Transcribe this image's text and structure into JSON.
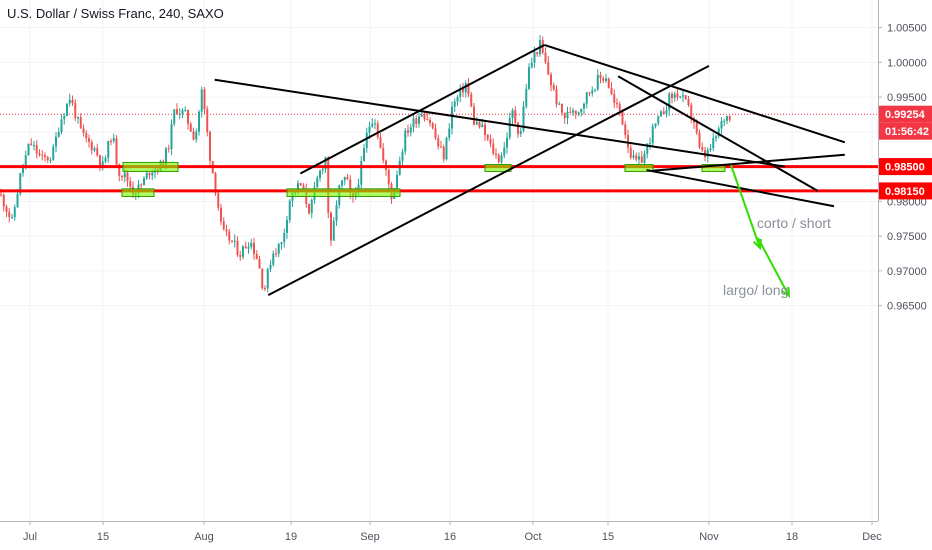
{
  "chart_data": {
    "type": "candlestick",
    "title": "U.S. Dollar / Swiss Franc, 240, SAXO",
    "xlabel": "",
    "ylabel": "",
    "ylim": [
      0.962,
      1.007
    ],
    "x_ticks": [
      "Jul",
      "15",
      "Aug",
      "19",
      "Sep",
      "16",
      "Oct",
      "15",
      "Nov",
      "18",
      "Dec"
    ],
    "y_ticks": [
      "1.00500",
      "1.00000",
      "0.99500",
      "0.99000",
      "0.98500",
      "0.98000",
      "0.97500",
      "0.97000",
      "0.96500"
    ],
    "current_price": {
      "value": 0.99254,
      "label": "0.99254",
      "countdown": "01:56:42",
      "color": "#f23645"
    },
    "horizontal_levels": [
      {
        "value": 0.985,
        "label": "0.98500",
        "color": "#ff0000"
      },
      {
        "value": 0.9815,
        "label": "0.98150",
        "color": "#ff0000"
      }
    ],
    "colors": {
      "up": "#26a69a",
      "down": "#ef5350",
      "zone": "#7cfc00",
      "arrow": "#33dd00",
      "trendline": "#000000"
    },
    "price_path": [
      [
        0,
        0.981
      ],
      [
        5,
        0.9795
      ],
      [
        12,
        0.977
      ],
      [
        20,
        0.9835
      ],
      [
        30,
        0.9885
      ],
      [
        42,
        0.986
      ],
      [
        52,
        0.9865
      ],
      [
        60,
        0.9915
      ],
      [
        70,
        0.995
      ],
      [
        82,
        0.9895
      ],
      [
        95,
        0.9875
      ],
      [
        103,
        0.985
      ],
      [
        112,
        0.99
      ],
      [
        118,
        0.9845
      ],
      [
        126,
        0.9835
      ],
      [
        133,
        0.9815
      ],
      [
        140,
        0.982
      ],
      [
        150,
        0.9845
      ],
      [
        160,
        0.985
      ],
      [
        168,
        0.9875
      ],
      [
        175,
        0.9935
      ],
      [
        185,
        0.9925
      ],
      [
        195,
        0.989
      ],
      [
        202,
        0.996
      ],
      [
        210,
        0.9865
      ],
      [
        216,
        0.9815
      ],
      [
        222,
        0.9755
      ],
      [
        230,
        0.9745
      ],
      [
        240,
        0.9725
      ],
      [
        250,
        0.9745
      ],
      [
        258,
        0.9715
      ],
      [
        264,
        0.967
      ],
      [
        272,
        0.9725
      ],
      [
        282,
        0.974
      ],
      [
        290,
        0.9805
      ],
      [
        300,
        0.9825
      ],
      [
        310,
        0.9785
      ],
      [
        318,
        0.9835
      ],
      [
        326,
        0.9865
      ],
      [
        330,
        0.9725
      ],
      [
        338,
        0.9815
      ],
      [
        346,
        0.9835
      ],
      [
        352,
        0.9795
      ],
      [
        360,
        0.984
      ],
      [
        368,
        0.9905
      ],
      [
        374,
        0.9925
      ],
      [
        382,
        0.9865
      ],
      [
        392,
        0.9805
      ],
      [
        398,
        0.985
      ],
      [
        406,
        0.99
      ],
      [
        414,
        0.9915
      ],
      [
        422,
        0.993
      ],
      [
        430,
        0.9915
      ],
      [
        438,
        0.988
      ],
      [
        444,
        0.9865
      ],
      [
        452,
        0.9935
      ],
      [
        460,
        0.9955
      ],
      [
        466,
        0.997
      ],
      [
        474,
        0.9915
      ],
      [
        482,
        0.9905
      ],
      [
        490,
        0.988
      ],
      [
        498,
        0.986
      ],
      [
        504,
        0.9875
      ],
      [
        512,
        0.993
      ],
      [
        520,
        0.9895
      ],
      [
        528,
        0.9985
      ],
      [
        534,
        1.001
      ],
      [
        540,
        1.0025
      ],
      [
        546,
        0.9995
      ],
      [
        552,
        0.9965
      ],
      [
        560,
        0.993
      ],
      [
        566,
        0.992
      ],
      [
        572,
        0.9935
      ],
      [
        578,
        0.993
      ],
      [
        588,
        0.9955
      ],
      [
        598,
        0.9975
      ],
      [
        606,
        0.998
      ],
      [
        614,
        0.994
      ],
      [
        620,
        0.993
      ],
      [
        626,
        0.9895
      ],
      [
        632,
        0.986
      ],
      [
        638,
        0.9855
      ],
      [
        644,
        0.9865
      ],
      [
        652,
        0.99
      ],
      [
        662,
        0.9925
      ],
      [
        670,
        0.995
      ],
      [
        678,
        0.9955
      ],
      [
        686,
        0.994
      ],
      [
        694,
        0.9915
      ],
      [
        700,
        0.987
      ],
      [
        706,
        0.9865
      ],
      [
        712,
        0.988
      ],
      [
        718,
        0.99
      ],
      [
        724,
        0.992
      ],
      [
        730,
        0.9925
      ]
    ],
    "trendlines": [
      {
        "from": [
          "Aug-3",
          0.9975
        ],
        "to": [
          "Nov-15",
          0.985
        ]
      },
      {
        "from": [
          "Oct-16",
          0.998
        ],
        "to": [
          "Nov-21",
          0.9815
        ]
      },
      {
        "from": [
          "Aug-19",
          0.984
        ],
        "to": [
          "Oct-3",
          1.0025
        ]
      },
      {
        "from": [
          "Aug-13",
          0.9665
        ],
        "to": [
          "Nov-1",
          0.9995
        ]
      },
      {
        "from": [
          "Oct-3",
          1.0025
        ],
        "to": [
          "Nov-26",
          0.9885
        ]
      },
      {
        "from": [
          "Oct-22",
          0.9844
        ],
        "to": [
          "Nov-26",
          0.9867
        ]
      },
      {
        "from": [
          "Nov-24",
          0.9793
        ],
        "to": [
          "Oct-21",
          0.9845
        ]
      }
    ],
    "zones": [
      {
        "from": 0.9856,
        "to": 0.9843
      },
      {
        "from": 0.9818,
        "to": 0.9807
      },
      {
        "from": 0.9818,
        "to": 0.9807
      },
      {
        "from": 0.9853,
        "to": 0.9843
      },
      {
        "from": 0.9853,
        "to": 0.9843
      },
      {
        "from": 0.9853,
        "to": 0.9843
      }
    ],
    "annotations": [
      {
        "text": "corto / short"
      },
      {
        "text": "largo/ long"
      }
    ]
  }
}
